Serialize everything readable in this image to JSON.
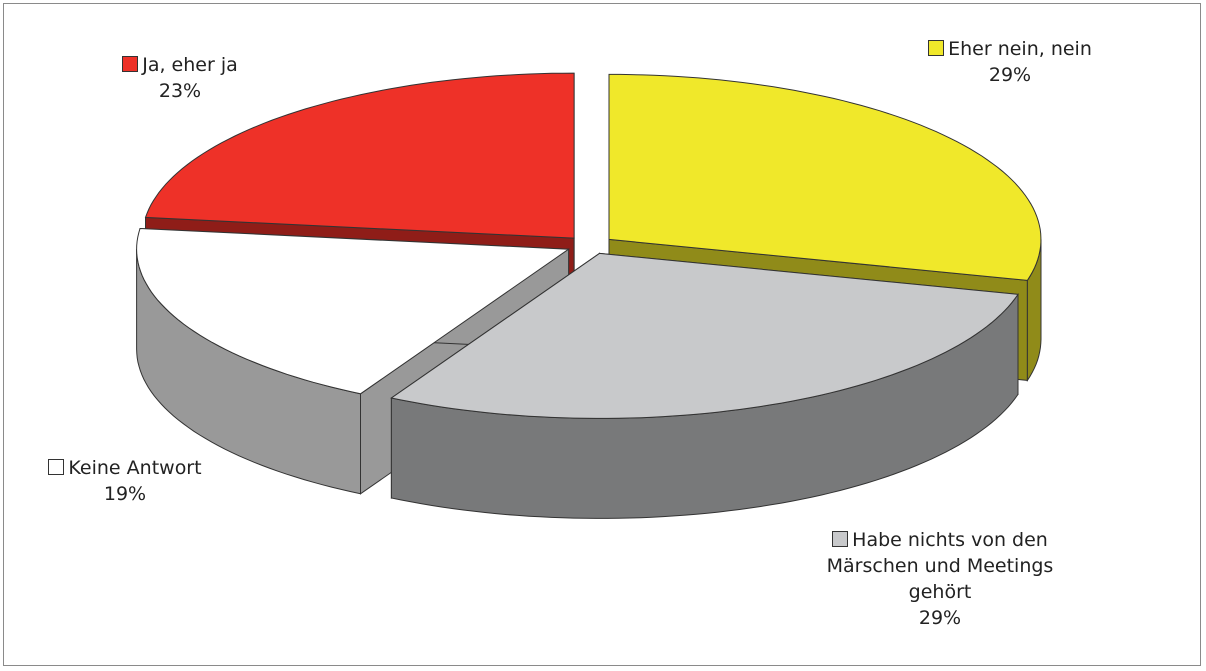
{
  "chart_data": {
    "type": "pie3d",
    "categories": [
      "Eher nein, nein",
      "Habe nichts von den Märschen und Meetings gehört",
      "Keine Antwort",
      "Ja, eher ja"
    ],
    "values": [
      29,
      29,
      19,
      23
    ],
    "value_labels": [
      "29%",
      "29%",
      "19%",
      "23%"
    ],
    "colors": [
      "#f0e82a",
      "#c8c9cb",
      "#ffffff",
      "#ee3128"
    ]
  }
}
